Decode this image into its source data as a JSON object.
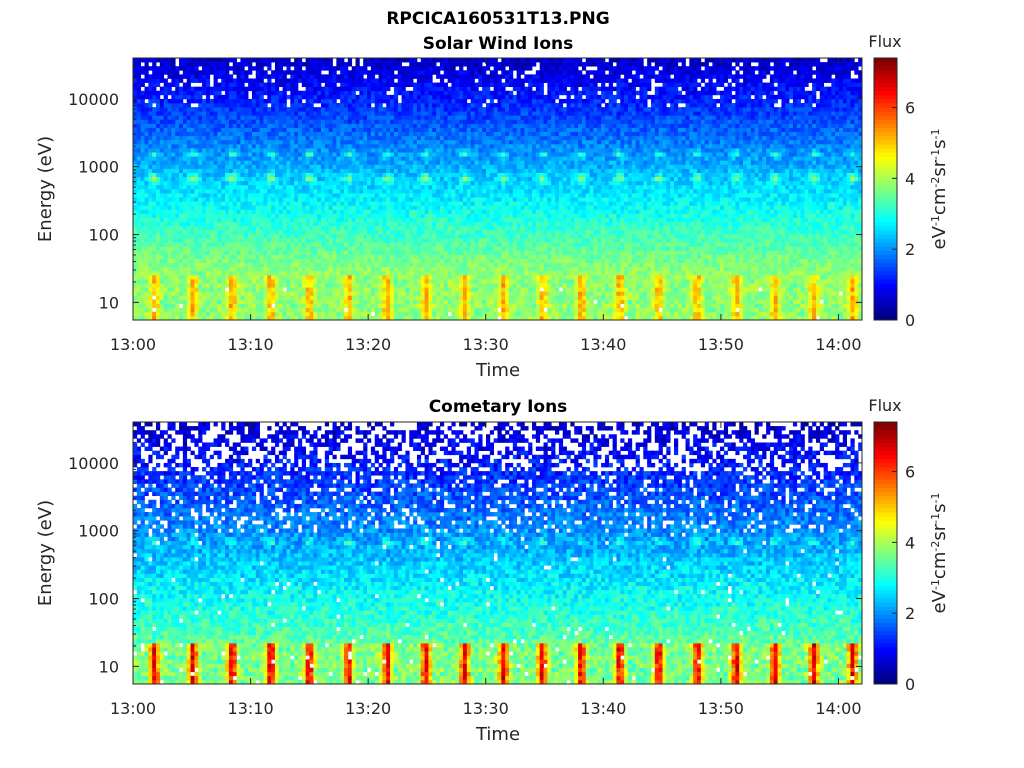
{
  "figure": {
    "title": "RPCICA160531T13.PNG"
  },
  "chart_data": [
    {
      "type": "heatmap",
      "title": "Solar Wind Ions",
      "xlabel": "Time",
      "ylabel": "Energy (eV)",
      "x_ticks": [
        "13:00",
        "13:10",
        "13:20",
        "13:30",
        "13:40",
        "13:50",
        "14:00"
      ],
      "x_range": [
        "13:00",
        "14:02"
      ],
      "y_scale": "log",
      "y_ticks": [
        "10",
        "100",
        "1000",
        "10000"
      ],
      "y_tick_values": [
        10,
        100,
        1000,
        10000
      ],
      "y_range": [
        5.5,
        40000
      ],
      "colorbar": {
        "title": "Flux",
        "label": "eV-1cm-2sr-1s-1",
        "ticks": [
          "0",
          "2",
          "4",
          "6"
        ],
        "tick_values": [
          0,
          2,
          4,
          6
        ],
        "range": [
          0,
          7.4
        ],
        "colormap": "jet"
      },
      "features": {
        "periodic_peak_energy_eV": 680,
        "secondary_peak_energy_eV": 1550,
        "period_minutes": 3.3,
        "low_energy_band_eV": [
          5.5,
          25
        ],
        "low_energy_flux": 4.5
      }
    },
    {
      "type": "heatmap",
      "title": "Cometary Ions",
      "xlabel": "Time",
      "ylabel": "Energy (eV)",
      "x_ticks": [
        "13:00",
        "13:10",
        "13:20",
        "13:30",
        "13:40",
        "13:50",
        "14:00"
      ],
      "x_range": [
        "13:00",
        "14:02"
      ],
      "y_scale": "log",
      "y_ticks": [
        "10",
        "100",
        "1000",
        "10000"
      ],
      "y_tick_values": [
        10,
        100,
        1000,
        10000
      ],
      "y_range": [
        5.5,
        40000
      ],
      "colorbar": {
        "title": "Flux",
        "label": "eV-1cm-2sr-1s-1",
        "ticks": [
          "0",
          "2",
          "4",
          "6"
        ],
        "tick_values": [
          0,
          2,
          4,
          6
        ],
        "range": [
          0,
          7.4
        ],
        "colormap": "jet"
      },
      "features": {
        "periodic_peak_energy_eV": 700,
        "period_minutes": 3.3,
        "low_energy_band_eV": [
          6,
          22
        ],
        "low_energy_flux": 6.2,
        "sparse_above_eV": 8000
      }
    }
  ]
}
